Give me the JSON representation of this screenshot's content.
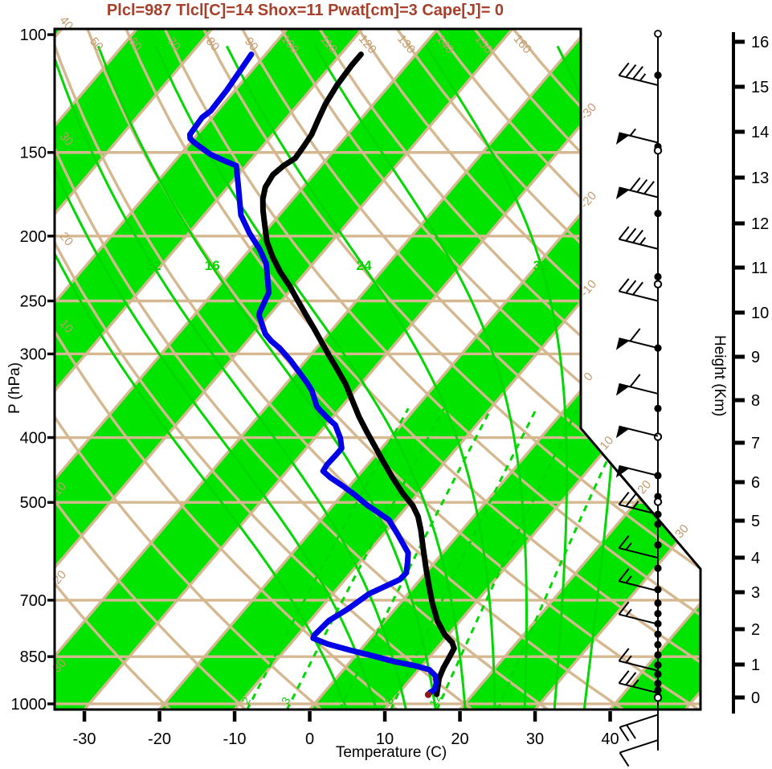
{
  "title": {
    "text": "Plcl=987 Tlcl[C]=14 Shox=11 Pwat[cm]=3 Cape[J]= 0",
    "color": "#A6402A"
  },
  "axes": {
    "pressure": {
      "label": "P (hPa)",
      "ticks": [
        100,
        150,
        200,
        250,
        300,
        400,
        500,
        700,
        850,
        1000
      ]
    },
    "temperature": {
      "label": "Temperature (C)",
      "ticks": [
        -30,
        -20,
        -10,
        0,
        10,
        20,
        30,
        40
      ]
    },
    "height": {
      "label": "Height (Km)",
      "ticks": [
        0,
        1,
        2,
        3,
        4,
        5,
        6,
        7,
        8,
        9,
        10,
        11,
        12,
        13,
        14,
        15,
        16
      ]
    }
  },
  "style": {
    "stripe_green": "#00E400",
    "line_green": "#00D800",
    "tan_line": "#D6B890",
    "tan_label": "#C49A6E",
    "temperature_color": "#000000",
    "dewpoint_color": "#0000E8",
    "marker_color": "#8B1A1A"
  },
  "background_lines": {
    "isotherms": {
      "interval_c": 10,
      "labels_left_edge": [
        -10,
        -20,
        -30
      ],
      "labels_right_edge": [
        0,
        -10,
        -20,
        -30
      ],
      "labels_diagonal_edge": [
        10,
        20,
        30
      ]
    },
    "dry_adiabats": {
      "values": [
        -20,
        -10,
        0,
        10,
        20,
        30,
        40,
        50,
        60,
        70,
        80,
        90,
        100,
        110,
        120,
        130,
        140,
        150,
        160
      ],
      "top_labels": [
        50,
        60,
        70,
        80,
        90,
        100,
        110,
        120,
        130,
        140,
        150,
        160
      ],
      "left_labels": [
        40,
        30,
        20,
        10
      ]
    },
    "moist_adiabats": {
      "values": [
        4,
        8,
        12,
        16,
        20,
        24,
        28,
        32,
        36
      ],
      "labels": [
        12,
        16,
        24,
        32
      ]
    },
    "mixing_ratio": {
      "values": [
        2,
        3,
        5,
        8,
        12,
        20
      ],
      "labels": [
        2,
        3,
        8,
        12
      ]
    }
  },
  "chart_data": {
    "type": "line",
    "chart": "skew-T log-p thermodynamic sounding",
    "title": "Plcl=987 Tlcl[C]=14 Shox=11 Pwat[cm]=3 Cape[J]= 0",
    "xlabel": "Temperature (C)",
    "ylabel": "P (hPa)",
    "xlim": [
      -35,
      52
    ],
    "pressure_range_hpa": [
      98,
      1020
    ],
    "height_range_km": [
      0,
      16
    ],
    "series": [
      {
        "name": "temperature",
        "color": "#000000",
        "units": [
          "hPa",
          "C"
        ],
        "points": [
          [
            107,
            -67.3
          ],
          [
            111,
            -67.3
          ],
          [
            119,
            -67.0
          ],
          [
            127,
            -66.4
          ],
          [
            134,
            -65.6
          ],
          [
            141,
            -64.8
          ],
          [
            147,
            -64.5
          ],
          [
            153,
            -64.3
          ],
          [
            157,
            -65.0
          ],
          [
            162,
            -65.4
          ],
          [
            169,
            -65.0
          ],
          [
            176,
            -64.0
          ],
          [
            183,
            -62.7
          ],
          [
            193,
            -60.7
          ],
          [
            204,
            -58.6
          ],
          [
            215,
            -56.1
          ],
          [
            226,
            -53.5
          ],
          [
            237,
            -50.7
          ],
          [
            249,
            -48.0
          ],
          [
            262,
            -45.2
          ],
          [
            275,
            -42.5
          ],
          [
            289,
            -39.8
          ],
          [
            302,
            -37.4
          ],
          [
            317,
            -34.7
          ],
          [
            333,
            -32.0
          ],
          [
            352,
            -29.3
          ],
          [
            372,
            -26.6
          ],
          [
            393,
            -23.7
          ],
          [
            413,
            -21.0
          ],
          [
            435,
            -18.2
          ],
          [
            460,
            -15.1
          ],
          [
            486,
            -11.9
          ],
          [
            506,
            -9.3
          ],
          [
            525,
            -7.4
          ],
          [
            550,
            -5.5
          ],
          [
            586,
            -3.1
          ],
          [
            627,
            -0.5
          ],
          [
            668,
            2.0
          ],
          [
            709,
            4.4
          ],
          [
            752,
            7.0
          ],
          [
            788,
            9.5
          ],
          [
            810,
            11.4
          ],
          [
            826,
            12.3
          ],
          [
            853,
            12.7
          ],
          [
            884,
            13.1
          ],
          [
            916,
            13.7
          ],
          [
            947,
            14.6
          ],
          [
            968,
            15.2
          ]
        ]
      },
      {
        "name": "dewpoint",
        "color": "#0000E8",
        "units": [
          "hPa",
          "C"
        ],
        "points": [
          [
            107,
            -81.9
          ],
          [
            121,
            -81.1
          ],
          [
            130,
            -80.9
          ],
          [
            133,
            -81.3
          ],
          [
            141,
            -81.0
          ],
          [
            143,
            -80.5
          ],
          [
            145,
            -79.5
          ],
          [
            151,
            -76.0
          ],
          [
            154,
            -73.7
          ],
          [
            157,
            -71.3
          ],
          [
            168,
            -68.8
          ],
          [
            186,
            -65.1
          ],
          [
            198,
            -61.9
          ],
          [
            209,
            -58.8
          ],
          [
            220,
            -56.2
          ],
          [
            243,
            -52.6
          ],
          [
            260,
            -51.6
          ],
          [
            263,
            -51.3
          ],
          [
            280,
            -48.4
          ],
          [
            287,
            -46.8
          ],
          [
            294,
            -44.9
          ],
          [
            307,
            -42.0
          ],
          [
            332,
            -37.2
          ],
          [
            341,
            -35.7
          ],
          [
            359,
            -33.4
          ],
          [
            364,
            -32.5
          ],
          [
            375,
            -30.4
          ],
          [
            383,
            -28.8
          ],
          [
            401,
            -26.6
          ],
          [
            415,
            -25.3
          ],
          [
            423,
            -25.3
          ],
          [
            439,
            -25.4
          ],
          [
            449,
            -25.2
          ],
          [
            459,
            -23.5
          ],
          [
            474,
            -20.6
          ],
          [
            487,
            -18.3
          ],
          [
            504,
            -15.6
          ],
          [
            521,
            -12.6
          ],
          [
            531,
            -10.9
          ],
          [
            558,
            -8.1
          ],
          [
            595,
            -4.6
          ],
          [
            615,
            -3.6
          ],
          [
            637,
            -2.6
          ],
          [
            652,
            -2.7
          ],
          [
            685,
            -5.2
          ],
          [
            722,
            -6.3
          ],
          [
            751,
            -7.5
          ],
          [
            789,
            -7.8
          ],
          [
            798,
            -7.6
          ],
          [
            814,
            -5.0
          ],
          [
            832,
            -1.2
          ],
          [
            848,
            2.4
          ],
          [
            865,
            5.9
          ],
          [
            877,
            9.1
          ],
          [
            889,
            11.4
          ],
          [
            909,
            13.0
          ],
          [
            932,
            13.9
          ],
          [
            953,
            14.4
          ],
          [
            961,
            14.1
          ],
          [
            969,
            14.1
          ]
        ]
      }
    ],
    "surface_marker": {
      "p": 969,
      "t": 14.1,
      "color": "#8B1A1A"
    },
    "wind_profile": {
      "barbs": [
        {
          "p": 119,
          "pennants": 0,
          "full": 3,
          "half": 1
        },
        {
          "p": 145,
          "pennants": 1,
          "full": 0,
          "half": 1
        },
        {
          "p": 175,
          "pennants": 1,
          "full": 3,
          "half": 0
        },
        {
          "p": 209,
          "pennants": 0,
          "full": 3,
          "half": 1
        },
        {
          "p": 250,
          "pennants": 0,
          "full": 3,
          "half": 0
        },
        {
          "p": 294,
          "pennants": 1,
          "full": 1,
          "half": 0
        },
        {
          "p": 344,
          "pennants": 1,
          "full": 1,
          "half": 0
        },
        {
          "p": 398,
          "pennants": 1,
          "full": 0,
          "half": 0
        },
        {
          "p": 456,
          "pennants": 1,
          "full": 0,
          "half": 0
        },
        {
          "p": 521,
          "pennants": 0,
          "full": 2,
          "half": 1
        },
        {
          "p": 605,
          "pennants": 0,
          "full": 1,
          "half": 1
        },
        {
          "p": 678,
          "pennants": 0,
          "full": 1,
          "half": 1
        },
        {
          "p": 760,
          "pennants": 0,
          "full": 1,
          "half": 1
        },
        {
          "p": 892,
          "pennants": 0,
          "full": 1,
          "half": 1
        },
        {
          "p": 963,
          "pennants": 0,
          "full": 2,
          "half": 1
        },
        {
          "p": 1038,
          "pennants": 0,
          "full": 2,
          "half": 0,
          "dir": "down"
        },
        {
          "p": 1133,
          "pennants": 0,
          "full": 1,
          "half": 0,
          "dir": "down"
        }
      ],
      "level_dots_hpa": [
        115,
        147,
        185,
        230,
        294,
        362,
        456,
        490,
        521,
        539,
        579,
        627,
        675,
        707,
        733,
        759,
        787,
        816,
        845,
        875,
        903,
        932,
        954,
        974
      ],
      "open_circles_hpa": [
        149,
        236,
        399,
        499,
        979
      ]
    }
  }
}
